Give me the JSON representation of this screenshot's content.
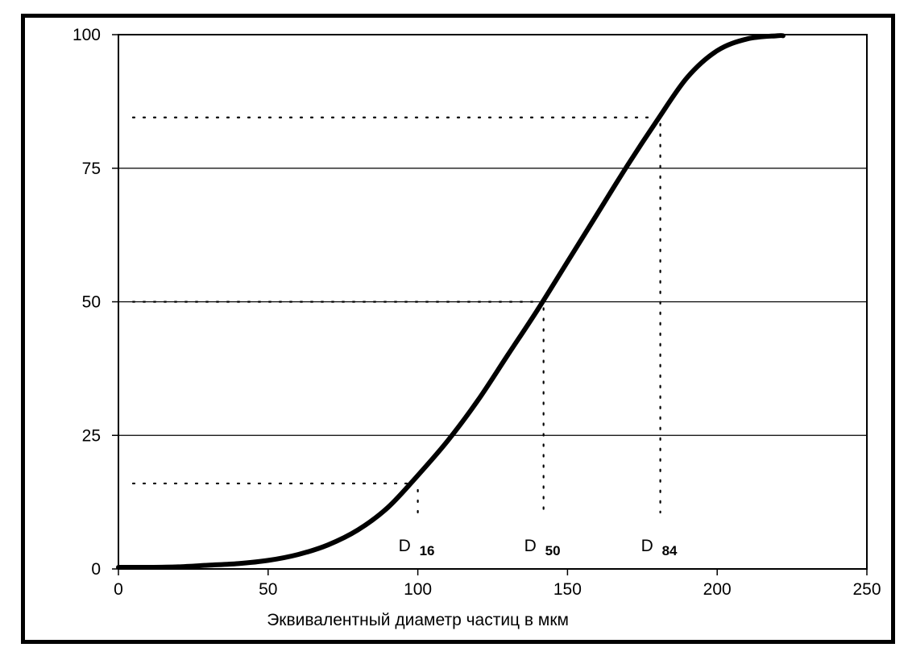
{
  "chart_data": {
    "type": "line",
    "title": "",
    "xlabel": "Эквивалентный диаметр частиц в мкм",
    "ylabel": "",
    "xlim": [
      0,
      250
    ],
    "ylim": [
      0,
      100
    ],
    "xticks": [
      0,
      50,
      100,
      150,
      200,
      250
    ],
    "yticks": [
      0,
      25,
      50,
      75,
      100
    ],
    "grid": "horizontal",
    "legend": "none",
    "line_color": "#000000",
    "series": [
      {
        "x": [
          0,
          10,
          20,
          30,
          40,
          50,
          60,
          70,
          80,
          90,
          100,
          110,
          120,
          130,
          140,
          150,
          160,
          170,
          180,
          190,
          200,
          210,
          220,
          222
        ],
        "y": [
          0.3,
          0.3,
          0.4,
          0.7,
          1.0,
          1.6,
          2.7,
          4.5,
          7.3,
          11.5,
          17.5,
          24.0,
          31.5,
          40.0,
          48.5,
          57.5,
          66.5,
          75.5,
          84.0,
          92.0,
          97.0,
          99.2,
          99.8,
          99.8
        ]
      }
    ],
    "markers": [
      {
        "name": "D16",
        "label_main": "D",
        "label_sub": "16",
        "x": 100,
        "y": 16
      },
      {
        "name": "D50",
        "label_main": "D",
        "label_sub": "50",
        "x": 142,
        "y": 50
      },
      {
        "name": "D84",
        "label_main": "D",
        "label_sub": "84",
        "x": 181,
        "y": 84.5
      }
    ]
  }
}
